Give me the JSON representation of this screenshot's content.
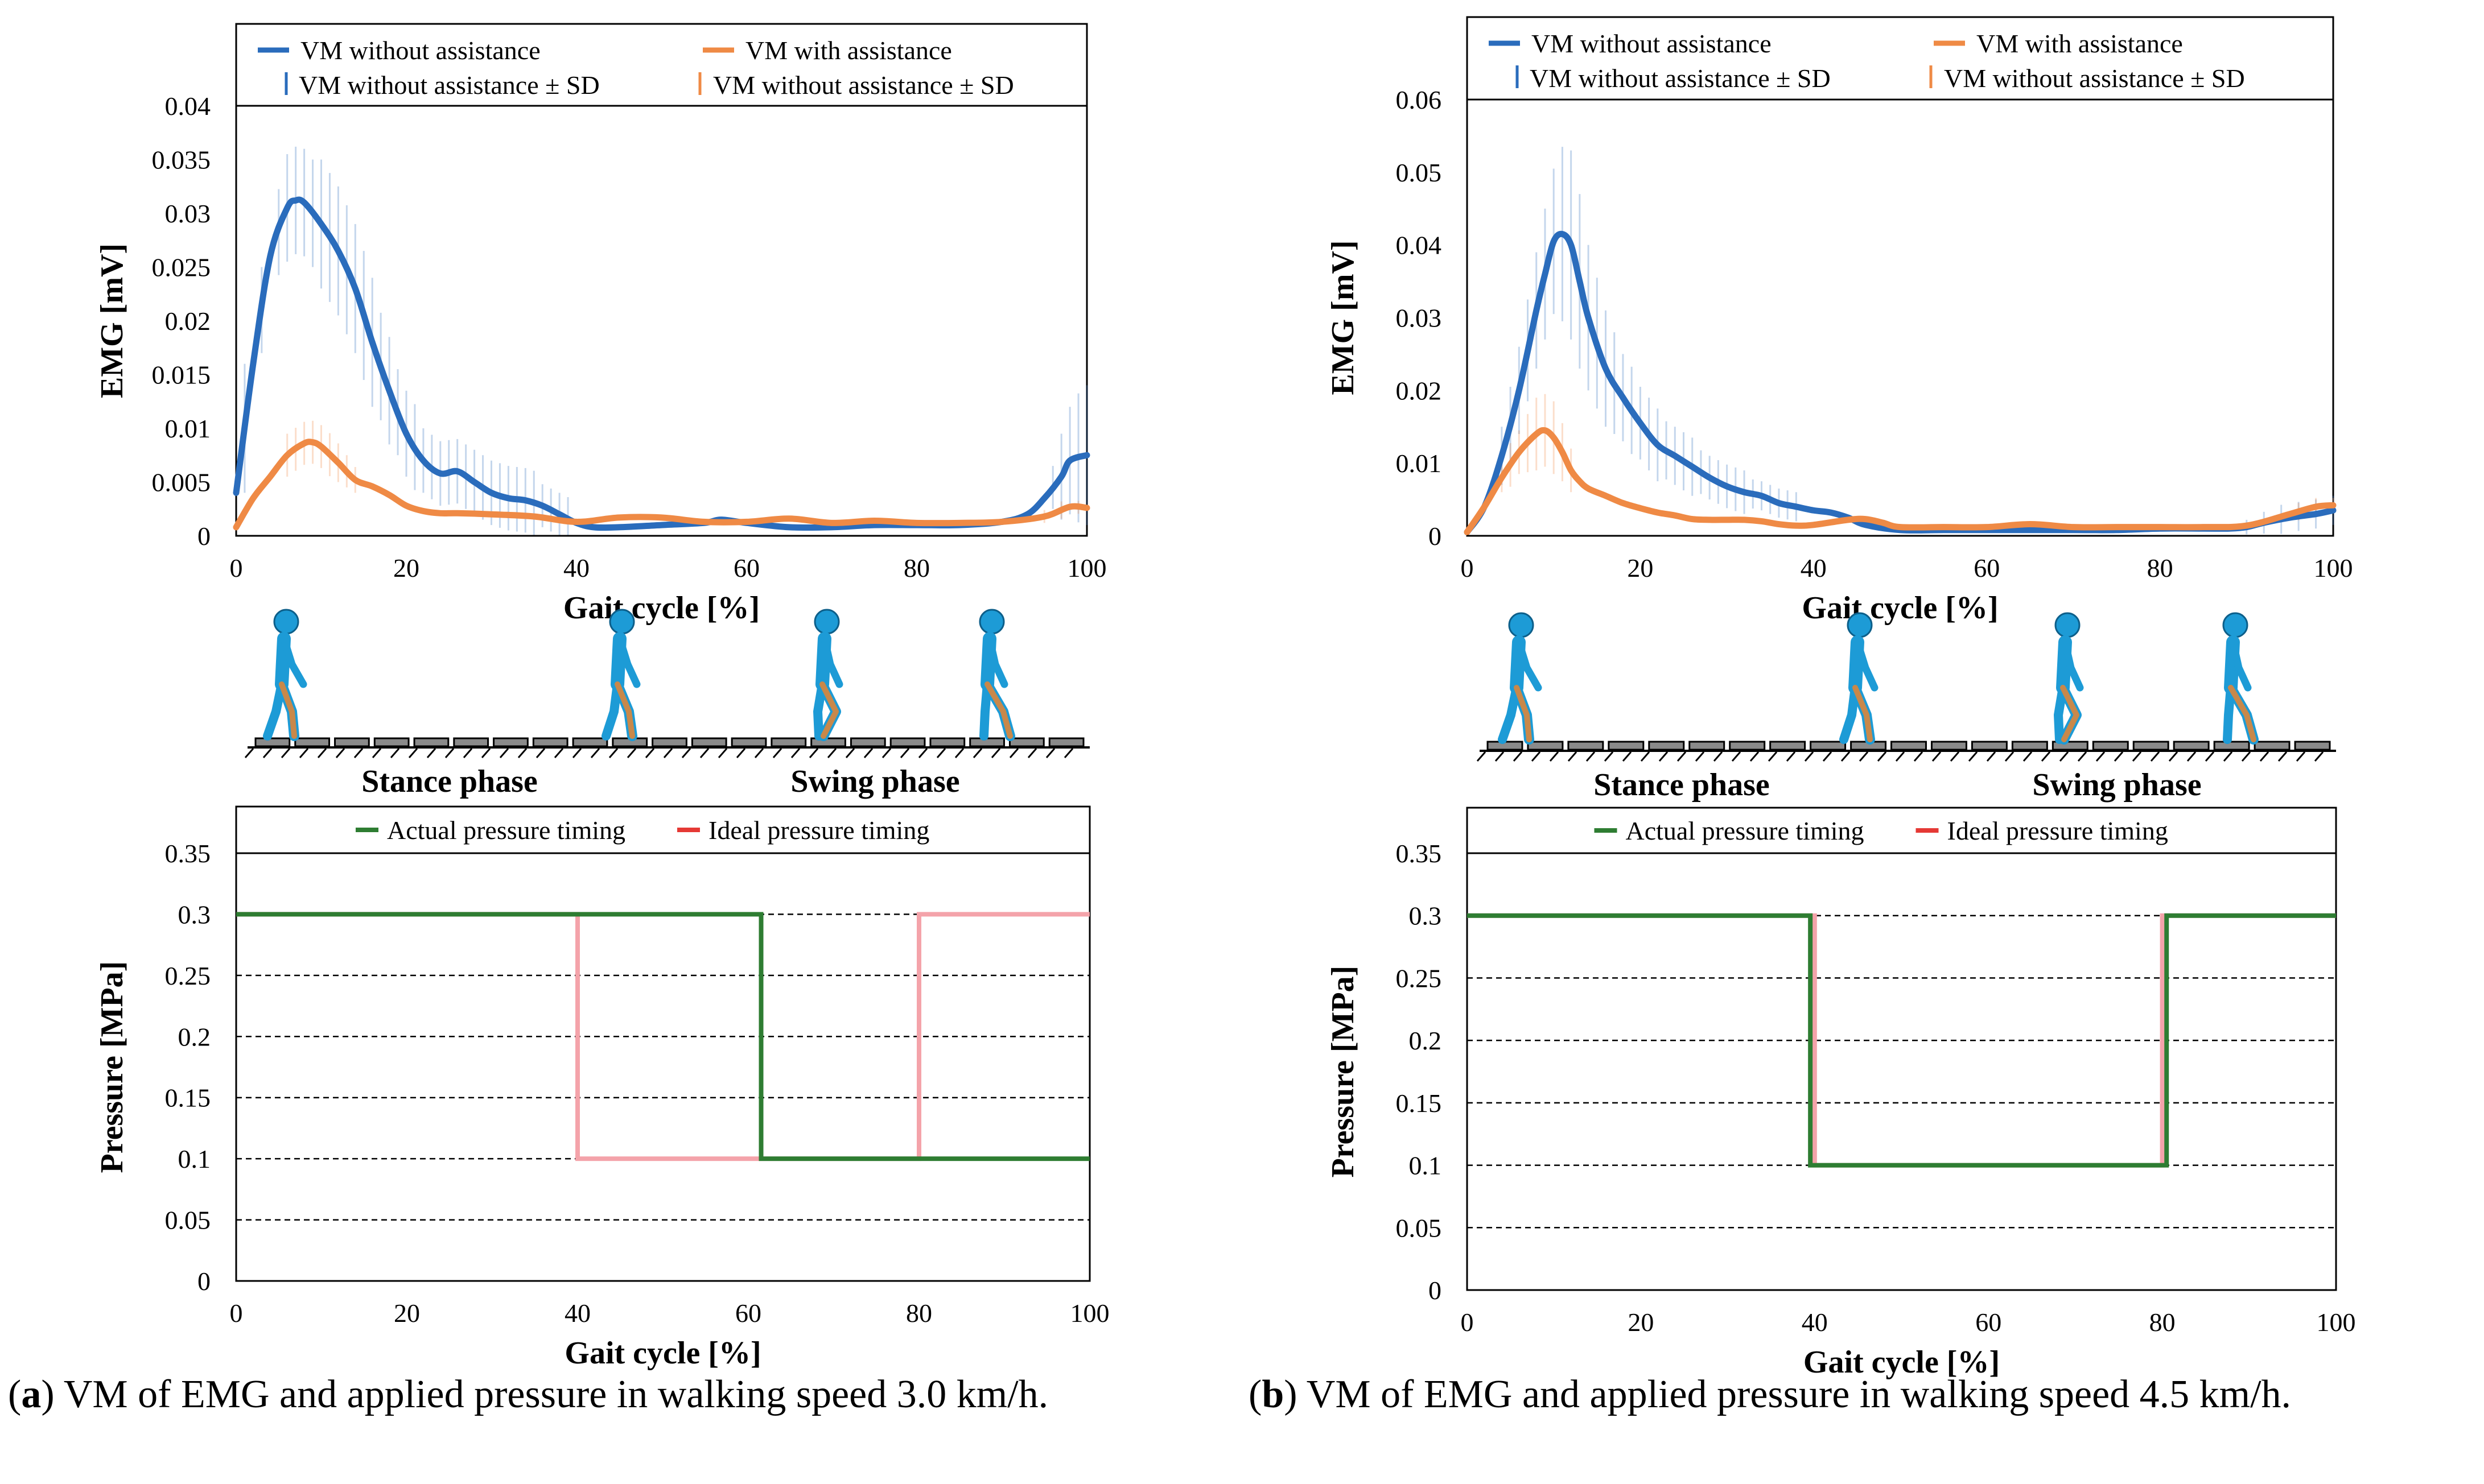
{
  "panels": [
    {
      "id": "a",
      "caption_letter": "a",
      "caption_text": "VM of EMG and applied pressure in walking speed 3.0 km/h.",
      "phase_labels": [
        "Stance phase",
        "Swing phase"
      ]
    },
    {
      "id": "b",
      "caption_letter": "b",
      "caption_text": "VM of EMG and applied pressure in walking speed 4.5 km/h.",
      "phase_labels": [
        "Stance phase",
        "Swing phase"
      ]
    }
  ],
  "colors": {
    "without_assistance": "#2a6cbc",
    "with_assistance": "#ef8a45",
    "actual_pressure": "#2e7d32",
    "ideal_pressure": "#f4a3aa",
    "walker_body": "#1d9bd6",
    "walker_leg": "#c8884a"
  },
  "chart_data": [
    {
      "panel": "a",
      "type": "line",
      "xlabel": "Gait cycle [%]",
      "ylabel": "EMG [mV]",
      "xlim": [
        0,
        100
      ],
      "ylim": [
        0,
        0.04
      ],
      "xticks": [
        "0",
        "20",
        "40",
        "60",
        "80",
        "100"
      ],
      "yticks": [
        "0",
        "0.005",
        "0.01",
        "0.015",
        "0.02",
        "0.025",
        "0.03",
        "0.035",
        "0.04"
      ],
      "grid": false,
      "legend": [
        "VM without assistance",
        "VM with assistance",
        "VM without assistance ± SD",
        "VM without assistance ± SD"
      ],
      "series": [
        {
          "name": "VM without assistance",
          "x": [
            0,
            2,
            4,
            6,
            7,
            8,
            10,
            12,
            14,
            16,
            18,
            20,
            22,
            24,
            26,
            28,
            30,
            32,
            34,
            36,
            38,
            40,
            42,
            45,
            50,
            55,
            57,
            60,
            65,
            70,
            75,
            80,
            85,
            90,
            93,
            95,
            97,
            98,
            100
          ],
          "y": [
            0.004,
            0.016,
            0.026,
            0.0305,
            0.0312,
            0.031,
            0.029,
            0.0265,
            0.023,
            0.018,
            0.0135,
            0.0095,
            0.007,
            0.0058,
            0.006,
            0.005,
            0.004,
            0.0035,
            0.0033,
            0.0028,
            0.002,
            0.0012,
            0.0008,
            0.0008,
            0.001,
            0.0012,
            0.0015,
            0.0012,
            0.0008,
            0.0008,
            0.001,
            0.001,
            0.001,
            0.0013,
            0.002,
            0.0035,
            0.0055,
            0.007,
            0.0075
          ]
        },
        {
          "name": "VM with assistance",
          "x": [
            0,
            2,
            4,
            6,
            8,
            9,
            10,
            12,
            14,
            16,
            18,
            20,
            22,
            24,
            26,
            30,
            35,
            40,
            45,
            50,
            55,
            60,
            65,
            70,
            75,
            80,
            85,
            90,
            95,
            98,
            100
          ],
          "y": [
            0.0008,
            0.0035,
            0.0055,
            0.0075,
            0.0086,
            0.0087,
            0.0083,
            0.0068,
            0.0052,
            0.0046,
            0.0038,
            0.0028,
            0.0023,
            0.0021,
            0.0021,
            0.002,
            0.0018,
            0.0013,
            0.0017,
            0.0017,
            0.0013,
            0.0013,
            0.0016,
            0.0012,
            0.0014,
            0.0012,
            0.0012,
            0.0013,
            0.0018,
            0.0027,
            0.0026
          ]
        }
      ],
      "sd": [
        {
          "name": "VM without assistance ± SD",
          "x": [
            1,
            3,
            5,
            6,
            7,
            8,
            9,
            10,
            11,
            12,
            13,
            14,
            15,
            16,
            17,
            18,
            19,
            20,
            21,
            22,
            23,
            24,
            25,
            26,
            27,
            28,
            29,
            30,
            31,
            32,
            33,
            34,
            35,
            36,
            37,
            38,
            39,
            96,
            97,
            98,
            99,
            100
          ],
          "half": [
            0.006,
            0.004,
            0.004,
            0.005,
            0.005,
            0.005,
            0.005,
            0.006,
            0.006,
            0.006,
            0.006,
            0.006,
            0.006,
            0.006,
            0.005,
            0.005,
            0.004,
            0.004,
            0.004,
            0.003,
            0.003,
            0.003,
            0.003,
            0.003,
            0.003,
            0.003,
            0.003,
            0.003,
            0.003,
            0.003,
            0.003,
            0.003,
            0.003,
            0.002,
            0.002,
            0.002,
            0.002,
            0.002,
            0.004,
            0.005,
            0.006,
            0.0065
          ]
        },
        {
          "name": "VM without assistance ± SD",
          "x": [
            6,
            7,
            8,
            9,
            10,
            11,
            12,
            13,
            14,
            95,
            97,
            99
          ],
          "half": [
            0.002,
            0.002,
            0.002,
            0.002,
            0.002,
            0.002,
            0.0018,
            0.0015,
            0.0012,
            0.0006,
            0.0008,
            0.0006
          ]
        }
      ]
    },
    {
      "panel": "b",
      "type": "line",
      "xlabel": "Gait cycle [%]",
      "ylabel": "EMG [mV]",
      "xlim": [
        0,
        100
      ],
      "ylim": [
        0,
        0.06
      ],
      "xticks": [
        "0",
        "20",
        "40",
        "60",
        "80",
        "100"
      ],
      "yticks": [
        "0",
        "0.01",
        "0.02",
        "0.03",
        "0.04",
        "0.05",
        "0.06"
      ],
      "grid": false,
      "legend": [
        "VM without assistance",
        "VM with assistance",
        "VM without assistance ± SD",
        "VM without assistance ± SD"
      ],
      "series": [
        {
          "name": "VM without assistance",
          "x": [
            0,
            2,
            4,
            6,
            8,
            9,
            10,
            11,
            12,
            13,
            14,
            16,
            18,
            20,
            22,
            24,
            26,
            28,
            30,
            32,
            34,
            36,
            38,
            40,
            42,
            44,
            46,
            50,
            55,
            60,
            65,
            70,
            75,
            80,
            85,
            88,
            90,
            92,
            95,
            98,
            100
          ],
          "y": [
            0.0005,
            0.004,
            0.011,
            0.02,
            0.031,
            0.036,
            0.0405,
            0.0415,
            0.04,
            0.035,
            0.03,
            0.023,
            0.019,
            0.0155,
            0.0125,
            0.011,
            0.0095,
            0.008,
            0.0068,
            0.006,
            0.0055,
            0.0045,
            0.004,
            0.0035,
            0.0032,
            0.0025,
            0.0015,
            0.0008,
            0.0008,
            0.0008,
            0.0008,
            0.0008,
            0.0008,
            0.001,
            0.001,
            0.001,
            0.0012,
            0.0018,
            0.0025,
            0.003,
            0.0035
          ]
        },
        {
          "name": "VM with assistance",
          "x": [
            0,
            2,
            4,
            6,
            8,
            9,
            10,
            11,
            12,
            13,
            14,
            16,
            18,
            20,
            22,
            24,
            26,
            28,
            30,
            32,
            34,
            36,
            38,
            40,
            44,
            46,
            48,
            50,
            55,
            60,
            65,
            70,
            75,
            80,
            85,
            90,
            95,
            98,
            100
          ],
          "y": [
            0.0005,
            0.004,
            0.008,
            0.0115,
            0.014,
            0.0145,
            0.0135,
            0.0115,
            0.009,
            0.0075,
            0.0065,
            0.0055,
            0.0045,
            0.0038,
            0.0032,
            0.0028,
            0.0023,
            0.0022,
            0.0022,
            0.0022,
            0.002,
            0.0016,
            0.0014,
            0.0015,
            0.0022,
            0.0023,
            0.0018,
            0.0012,
            0.0012,
            0.0012,
            0.0016,
            0.0012,
            0.0012,
            0.0012,
            0.0012,
            0.0014,
            0.003,
            0.004,
            0.0042
          ]
        }
      ],
      "sd": [
        {
          "name": "VM without assistance ± SD",
          "x": [
            4,
            5,
            6,
            7,
            8,
            9,
            10,
            11,
            12,
            13,
            14,
            15,
            16,
            17,
            18,
            19,
            20,
            21,
            22,
            23,
            24,
            25,
            26,
            27,
            28,
            29,
            30,
            31,
            32,
            33,
            34,
            35,
            36,
            37,
            38,
            90,
            92,
            94,
            96,
            98,
            100
          ],
          "half": [
            0.004,
            0.005,
            0.006,
            0.007,
            0.008,
            0.009,
            0.01,
            0.012,
            0.013,
            0.012,
            0.01,
            0.009,
            0.008,
            0.007,
            0.006,
            0.006,
            0.005,
            0.005,
            0.005,
            0.004,
            0.004,
            0.004,
            0.004,
            0.003,
            0.003,
            0.003,
            0.003,
            0.003,
            0.003,
            0.002,
            0.002,
            0.002,
            0.002,
            0.002,
            0.002,
            0.001,
            0.0015,
            0.002,
            0.002,
            0.002,
            0.002
          ]
        },
        {
          "name": "VM without assistance ± SD",
          "x": [
            4,
            5,
            6,
            7,
            8,
            9,
            10,
            11,
            12,
            96,
            98,
            100
          ],
          "half": [
            0.002,
            0.003,
            0.003,
            0.004,
            0.005,
            0.005,
            0.005,
            0.004,
            0.003,
            0.0012,
            0.0012,
            0.001
          ]
        }
      ]
    },
    {
      "panel": "a",
      "type": "line",
      "xlabel": "Gait cycle [%]",
      "ylabel": "Pressure [MPa]",
      "xlim": [
        0,
        100
      ],
      "ylim": [
        0,
        0.35
      ],
      "xticks": [
        "0",
        "20",
        "40",
        "60",
        "80",
        "100"
      ],
      "yticks": [
        "0",
        "0.05",
        "0.1",
        "0.15",
        "0.2",
        "0.25",
        "0.3",
        "0.35"
      ],
      "grid": true,
      "legend": [
        "Actual pressure timing",
        "Ideal pressure timing"
      ],
      "series": [
        {
          "name": "Ideal pressure timing",
          "x": [
            0,
            40,
            40,
            80,
            80,
            100
          ],
          "y": [
            0.3,
            0.3,
            0.1,
            0.1,
            0.3,
            0.3
          ]
        },
        {
          "name": "Actual pressure timing",
          "x": [
            0,
            61.5,
            61.5,
            100
          ],
          "y": [
            0.3,
            0.3,
            0.1,
            0.1
          ]
        }
      ]
    },
    {
      "panel": "b",
      "type": "line",
      "xlabel": "Gait cycle [%]",
      "ylabel": "Pressure [MPa]",
      "xlim": [
        0,
        100
      ],
      "ylim": [
        0,
        0.35
      ],
      "xticks": [
        "0",
        "20",
        "40",
        "60",
        "80",
        "100"
      ],
      "yticks": [
        "0",
        "0.05",
        "0.1",
        "0.15",
        "0.2",
        "0.25",
        "0.3",
        "0.35"
      ],
      "grid": true,
      "legend": [
        "Actual pressure timing",
        "Ideal pressure timing"
      ],
      "series": [
        {
          "name": "Ideal pressure timing",
          "x": [
            0,
            40,
            40,
            80,
            80,
            100
          ],
          "y": [
            0.3,
            0.3,
            0.1,
            0.1,
            0.3,
            0.3
          ]
        },
        {
          "name": "Actual pressure timing",
          "x": [
            0,
            39.5,
            39.5,
            80.5,
            80.5,
            100
          ],
          "y": [
            0.3,
            0.3,
            0.1,
            0.1,
            0.3,
            0.3
          ]
        }
      ]
    }
  ]
}
